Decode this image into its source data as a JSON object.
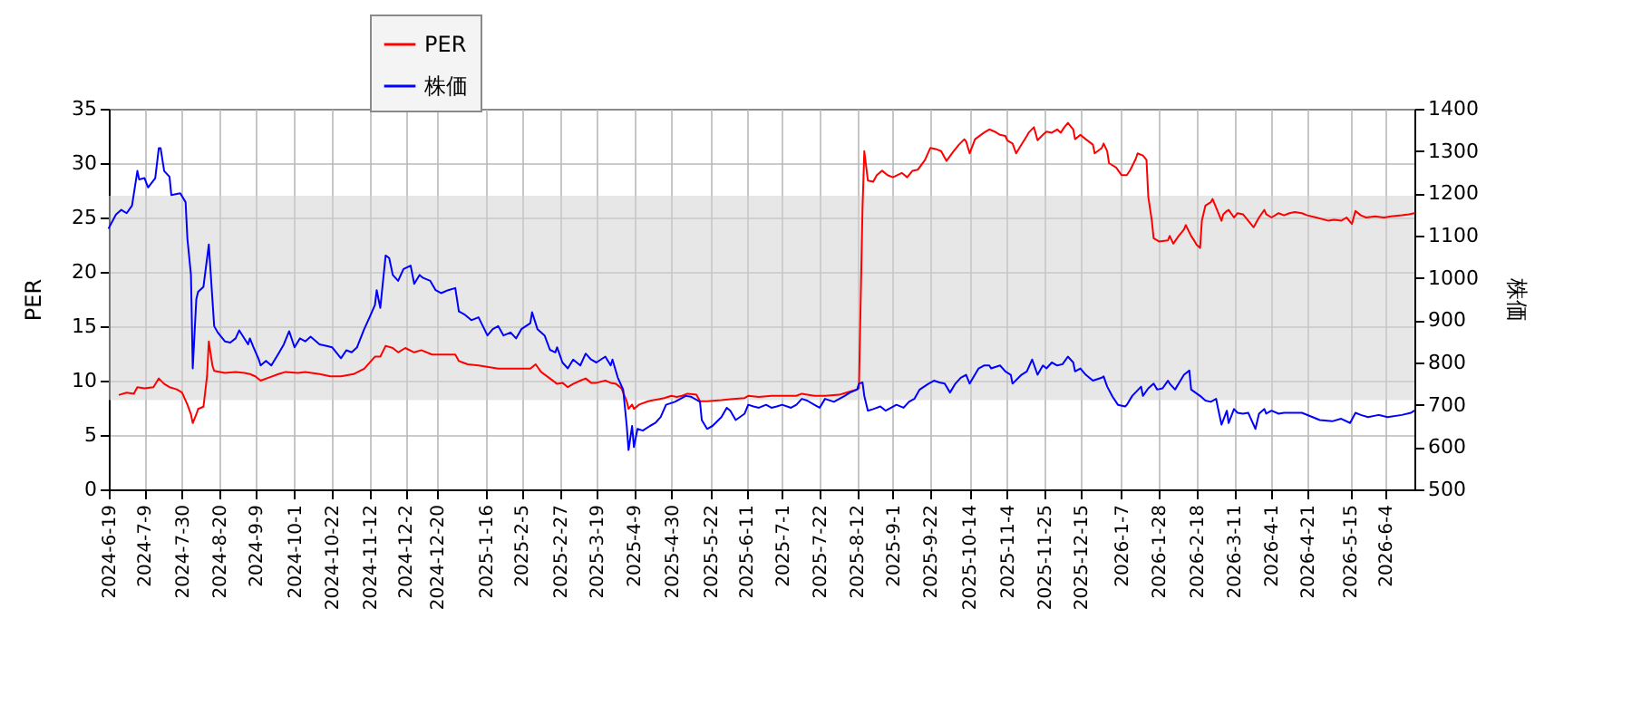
{
  "chart_data": {
    "type": "line",
    "ylabel": "PER",
    "y2label": "株価",
    "xlim": [
      "2024-06-19",
      "2026-06-20"
    ],
    "xticks": [
      {
        "value": "2024-06-19",
        "label": "2024-6-19"
      },
      {
        "value": "2024-07-09",
        "label": "2024-7-9"
      },
      {
        "value": "2024-07-30",
        "label": "2024-7-30"
      },
      {
        "value": "2024-08-20",
        "label": "2024-8-20"
      },
      {
        "value": "2024-09-09",
        "label": "2024-9-9"
      },
      {
        "value": "2024-10-01",
        "label": "2024-10-1"
      },
      {
        "value": "2024-10-22",
        "label": "2024-10-22"
      },
      {
        "value": "2024-11-12",
        "label": "2024-11-12"
      },
      {
        "value": "2024-12-02",
        "label": "2024-12-2"
      },
      {
        "value": "2024-12-20",
        "label": "2024-12-20"
      },
      {
        "value": "2025-01-16",
        "label": "2025-1-16"
      },
      {
        "value": "2025-02-05",
        "label": "2025-2-5"
      },
      {
        "value": "2025-02-27",
        "label": "2025-2-27"
      },
      {
        "value": "2025-03-19",
        "label": "2025-3-19"
      },
      {
        "value": "2025-04-09",
        "label": "2025-4-9"
      },
      {
        "value": "2025-04-30",
        "label": "2025-4-30"
      },
      {
        "value": "2025-05-22",
        "label": "2025-5-22"
      },
      {
        "value": "2025-06-11",
        "label": "2025-6-11"
      },
      {
        "value": "2025-07-01",
        "label": "2025-7-1"
      },
      {
        "value": "2025-07-22",
        "label": "2025-7-22"
      },
      {
        "value": "2025-08-12",
        "label": "2025-8-12"
      },
      {
        "value": "2025-09-01",
        "label": "2025-9-1"
      },
      {
        "value": "2025-09-22",
        "label": "2025-9-22"
      },
      {
        "value": "2025-10-14",
        "label": "2025-10-14"
      },
      {
        "value": "2025-11-04",
        "label": "2025-11-4"
      },
      {
        "value": "2025-11-25",
        "label": "2025-11-25"
      },
      {
        "value": "2025-12-15",
        "label": "2025-12-15"
      },
      {
        "value": "2026-01-07",
        "label": "2026-1-7"
      },
      {
        "value": "2026-01-28",
        "label": "2026-1-28"
      },
      {
        "value": "2026-02-18",
        "label": "2026-2-18"
      },
      {
        "value": "2026-03-11",
        "label": "2026-3-11"
      },
      {
        "value": "2026-04-01",
        "label": "2026-4-1"
      },
      {
        "value": "2026-04-21",
        "label": "2026-4-21"
      },
      {
        "value": "2026-05-15",
        "label": "2026-5-15"
      },
      {
        "value": "2026-06-04",
        "label": "2026-6-4"
      }
    ],
    "ylim": [
      0,
      35
    ],
    "yticks": [
      0,
      5,
      10,
      15,
      20,
      25,
      30,
      35
    ],
    "y2lim": [
      500,
      1400
    ],
    "y2ticks": [
      500,
      600,
      700,
      800,
      900,
      1000,
      1100,
      1200,
      1300,
      1400
    ],
    "grid": true,
    "legend": "top",
    "bands": [
      {
        "axis": "y",
        "from": 8.2,
        "to": 27,
        "color": "#d4d4d4"
      }
    ],
    "series": [
      {
        "name": "PER",
        "color": "#ff0000",
        "x": [
          "2024-06-25",
          "2024-06-29",
          "2024-07-03",
          "2024-07-05",
          "2024-07-09",
          "2024-07-14",
          "2024-07-17",
          "2024-07-20",
          "2024-07-23",
          "2024-07-27",
          "2024-07-30",
          "2024-08-02",
          "2024-08-04",
          "2024-08-05",
          "2024-08-07",
          "2024-08-08",
          "2024-08-11",
          "2024-08-13",
          "2024-08-14",
          "2024-08-16",
          "2024-08-17",
          "2024-08-23",
          "2024-08-29",
          "2024-09-03",
          "2024-09-06",
          "2024-09-09",
          "2024-09-12",
          "2024-09-17",
          "2024-09-22",
          "2024-09-26",
          "2024-10-03",
          "2024-10-07",
          "2024-10-15",
          "2024-10-21",
          "2024-10-27",
          "2024-11-03",
          "2024-11-09",
          "2024-11-15",
          "2024-11-18",
          "2024-11-21",
          "2024-11-25",
          "2024-11-28",
          "2024-12-02",
          "2024-12-07",
          "2024-12-11",
          "2024-12-17",
          "2024-12-30",
          "2025-01-01",
          "2025-01-06",
          "2025-01-12",
          "2025-01-23",
          "2025-01-30",
          "2025-02-05",
          "2025-02-10",
          "2025-02-13",
          "2025-02-16",
          "2025-02-21",
          "2025-02-25",
          "2025-02-28",
          "2025-03-03",
          "2025-03-06",
          "2025-03-10",
          "2025-03-13",
          "2025-03-16",
          "2025-03-19",
          "2025-03-24",
          "2025-03-27",
          "2025-03-30",
          "2025-04-02",
          "2025-04-05",
          "2025-04-06",
          "2025-04-08",
          "2025-04-09",
          "2025-04-12",
          "2025-04-17",
          "2025-04-20",
          "2025-04-23",
          "2025-04-26",
          "2025-04-30",
          "2025-05-03",
          "2025-05-06",
          "2025-05-09",
          "2025-05-14",
          "2025-05-16",
          "2025-05-20",
          "2025-05-28",
          "2025-06-02",
          "2025-06-10",
          "2025-06-12",
          "2025-06-18",
          "2025-06-25",
          "2025-07-01",
          "2025-07-09",
          "2025-07-12",
          "2025-07-19",
          "2025-07-25",
          "2025-08-02",
          "2025-08-06",
          "2025-08-12",
          "2025-08-13",
          "2025-08-15",
          "2025-08-16",
          "2025-08-18",
          "2025-08-21",
          "2025-08-23",
          "2025-08-26",
          "2025-08-29",
          "2025-09-01",
          "2025-09-06",
          "2025-09-09",
          "2025-09-12",
          "2025-09-15",
          "2025-09-19",
          "2025-09-22",
          "2025-09-25",
          "2025-09-28",
          "2025-10-01",
          "2025-10-05",
          "2025-10-08",
          "2025-10-11",
          "2025-10-12",
          "2025-10-14",
          "2025-10-17",
          "2025-10-22",
          "2025-10-25",
          "2025-10-28",
          "2025-10-31",
          "2025-11-03",
          "2025-11-04",
          "2025-11-07",
          "2025-11-09",
          "2025-11-12",
          "2025-11-15",
          "2025-11-16",
          "2025-11-19",
          "2025-11-21",
          "2025-11-24",
          "2025-11-26",
          "2025-11-29",
          "2025-12-02",
          "2025-12-04",
          "2025-12-06",
          "2025-12-08",
          "2025-12-11",
          "2025-12-12",
          "2025-12-15",
          "2025-12-18",
          "2025-12-22",
          "2025-12-23",
          "2025-12-27",
          "2025-12-28",
          "2025-12-30",
          "2025-12-31",
          "2026-01-04",
          "2026-01-07",
          "2026-01-10",
          "2026-01-12",
          "2026-01-15",
          "2026-01-16",
          "2026-01-19",
          "2026-01-21",
          "2026-01-22",
          "2026-01-24",
          "2026-01-25",
          "2026-01-28",
          "2026-02-02",
          "2026-02-03",
          "2026-02-05",
          "2026-02-08",
          "2026-02-11",
          "2026-02-12",
          "2026-02-15",
          "2026-02-17",
          "2026-02-18",
          "2026-02-20",
          "2026-02-21",
          "2026-02-23",
          "2026-02-26",
          "2026-02-27",
          "2026-03-01",
          "2026-03-04",
          "2026-03-05",
          "2026-03-07",
          "2026-03-08",
          "2026-03-11",
          "2026-03-13",
          "2026-03-16",
          "2026-03-19",
          "2026-03-22",
          "2026-03-25",
          "2026-03-28",
          "2026-03-29",
          "2026-04-01",
          "2026-04-05",
          "2026-04-08",
          "2026-04-11",
          "2026-04-14",
          "2026-04-18",
          "2026-04-21",
          "2026-04-26",
          "2026-05-03",
          "2026-05-06",
          "2026-05-10",
          "2026-05-13",
          "2026-05-16",
          "2026-05-18",
          "2026-05-21",
          "2026-05-24",
          "2026-05-29",
          "2026-06-03",
          "2026-06-07",
          "2026-06-13",
          "2026-06-17",
          "2026-06-20"
        ],
        "values": [
          8.7,
          8.9,
          8.8,
          9.4,
          9.3,
          9.4,
          10.2,
          9.7,
          9.4,
          9.2,
          8.9,
          7.8,
          6.9,
          6.1,
          6.9,
          7.4,
          7.6,
          10.4,
          13.6,
          11.4,
          10.9,
          10.7,
          10.8,
          10.7,
          10.6,
          10.4,
          10.0,
          10.3,
          10.6,
          10.8,
          10.7,
          10.8,
          10.6,
          10.4,
          10.4,
          10.6,
          11.1,
          12.2,
          12.2,
          13.2,
          13.0,
          12.6,
          13.0,
          12.6,
          12.8,
          12.4,
          12.4,
          11.8,
          11.5,
          11.4,
          11.1,
          11.1,
          11.1,
          11.1,
          11.5,
          10.8,
          10.2,
          9.7,
          9.8,
          9.4,
          9.7,
          10.0,
          10.2,
          9.8,
          9.8,
          10.0,
          9.8,
          9.7,
          9.3,
          8.1,
          7.4,
          7.8,
          7.4,
          7.8,
          8.1,
          8.2,
          8.3,
          8.4,
          8.6,
          8.5,
          8.6,
          8.8,
          8.7,
          8.1,
          8.1,
          8.2,
          8.3,
          8.4,
          8.6,
          8.5,
          8.6,
          8.6,
          8.6,
          8.8,
          8.6,
          8.6,
          8.7,
          8.9,
          9.2,
          9.3,
          25.8,
          31.1,
          28.4,
          28.3,
          28.9,
          29.3,
          28.9,
          28.7,
          29.1,
          28.7,
          29.3,
          29.4,
          30.3,
          31.4,
          31.3,
          31.1,
          30.2,
          31.1,
          31.7,
          32.2,
          32.0,
          30.9,
          32.2,
          32.8,
          33.1,
          32.9,
          32.6,
          32.5,
          32.1,
          31.8,
          30.9,
          31.7,
          32.5,
          32.8,
          33.3,
          32.1,
          32.6,
          32.9,
          32.8,
          33.1,
          32.8,
          33.3,
          33.7,
          33.1,
          32.2,
          32.6,
          32.2,
          31.7,
          30.9,
          31.4,
          31.8,
          31.1,
          30.0,
          29.6,
          28.9,
          28.9,
          29.4,
          30.4,
          30.9,
          30.7,
          30.3,
          26.9,
          24.7,
          23.1,
          22.8,
          22.9,
          23.3,
          22.6,
          23.3,
          23.9,
          24.3,
          23.3,
          22.8,
          22.5,
          22.2,
          24.7,
          26.1,
          26.4,
          26.7,
          25.9,
          24.7,
          25.3,
          25.6,
          25.7,
          25.0,
          25.4,
          25.3,
          24.7,
          24.1,
          25.0,
          25.7,
          25.3,
          25.0,
          25.4,
          25.2,
          25.4,
          25.5,
          25.4,
          25.2,
          25.0,
          24.7,
          24.8,
          24.7,
          25.0,
          24.4,
          25.6,
          25.2,
          25.0,
          25.1,
          25.0,
          25.1,
          25.2,
          25.3,
          25.4
        ]
      },
      {
        "name": "株価",
        "color": "#0000ff",
        "axis": "y2",
        "x": [
          "2024-06-19",
          "2024-06-23",
          "2024-06-26",
          "2024-06-29",
          "2024-07-02",
          "2024-07-05",
          "2024-07-06",
          "2024-07-09",
          "2024-07-11",
          "2024-07-15",
          "2024-07-17",
          "2024-07-18",
          "2024-07-20",
          "2024-07-23",
          "2024-07-24",
          "2024-07-29",
          "2024-08-01",
          "2024-08-02",
          "2024-08-04",
          "2024-08-05",
          "2024-08-07",
          "2024-08-08",
          "2024-08-11",
          "2024-08-14",
          "2024-08-16",
          "2024-08-17",
          "2024-08-19",
          "2024-08-23",
          "2024-08-26",
          "2024-08-29",
          "2024-08-31",
          "2024-09-05",
          "2024-09-06",
          "2024-09-08",
          "2024-09-11",
          "2024-09-12",
          "2024-09-15",
          "2024-09-18",
          "2024-09-22",
          "2024-09-25",
          "2024-09-28",
          "2024-10-01",
          "2024-10-04",
          "2024-10-07",
          "2024-10-10",
          "2024-10-15",
          "2024-10-19",
          "2024-10-22",
          "2024-10-27",
          "2024-10-30",
          "2024-11-02",
          "2024-11-05",
          "2024-11-09",
          "2024-11-12",
          "2024-11-15",
          "2024-11-16",
          "2024-11-18",
          "2024-11-21",
          "2024-11-23",
          "2024-11-25",
          "2024-11-28",
          "2024-12-01",
          "2024-12-05",
          "2024-12-07",
          "2024-12-10",
          "2024-12-12",
          "2024-12-16",
          "2024-12-19",
          "2024-12-22",
          "2024-12-26",
          "2024-12-30",
          "2025-01-01",
          "2025-01-04",
          "2025-01-08",
          "2025-01-12",
          "2025-01-17",
          "2025-01-20",
          "2025-01-23",
          "2025-01-26",
          "2025-01-30",
          "2025-02-02",
          "2025-02-05",
          "2025-02-10",
          "2025-02-11",
          "2025-02-14",
          "2025-02-18",
          "2025-02-21",
          "2025-02-24",
          "2025-02-25",
          "2025-02-28",
          "2025-03-03",
          "2025-03-06",
          "2025-03-10",
          "2025-03-13",
          "2025-03-16",
          "2025-03-19",
          "2025-03-24",
          "2025-03-27",
          "2025-03-28",
          "2025-03-31",
          "2025-04-03",
          "2025-04-05",
          "2025-04-06",
          "2025-04-08",
          "2025-04-09",
          "2025-04-11",
          "2025-04-14",
          "2025-04-18",
          "2025-04-21",
          "2025-04-24",
          "2025-04-27",
          "2025-05-02",
          "2025-05-05",
          "2025-05-08",
          "2025-05-11",
          "2025-05-16",
          "2025-05-17",
          "2025-05-20",
          "2025-05-23",
          "2025-05-28",
          "2025-05-31",
          "2025-06-02",
          "2025-06-05",
          "2025-06-10",
          "2025-06-12",
          "2025-06-15",
          "2025-06-18",
          "2025-06-22",
          "2025-06-25",
          "2025-06-28",
          "2025-07-01",
          "2025-07-06",
          "2025-07-09",
          "2025-07-12",
          "2025-07-15",
          "2025-07-19",
          "2025-07-22",
          "2025-07-25",
          "2025-07-30",
          "2025-08-02",
          "2025-08-05",
          "2025-08-08",
          "2025-08-12",
          "2025-08-13",
          "2025-08-15",
          "2025-08-16",
          "2025-08-18",
          "2025-08-21",
          "2025-08-25",
          "2025-08-28",
          "2025-08-31",
          "2025-09-03",
          "2025-09-07",
          "2025-09-10",
          "2025-09-13",
          "2025-09-16",
          "2025-09-21",
          "2025-09-24",
          "2025-09-27",
          "2025-09-30",
          "2025-10-03",
          "2025-10-06",
          "2025-10-09",
          "2025-10-12",
          "2025-10-14",
          "2025-10-19",
          "2025-10-22",
          "2025-10-25",
          "2025-10-26",
          "2025-10-31",
          "2025-11-03",
          "2025-11-06",
          "2025-11-07",
          "2025-11-12",
          "2025-11-15",
          "2025-11-18",
          "2025-11-21",
          "2025-11-24",
          "2025-11-26",
          "2025-11-29",
          "2025-12-02",
          "2025-12-05",
          "2025-12-08",
          "2025-12-11",
          "2025-12-12",
          "2025-12-15",
          "2025-12-18",
          "2025-12-22",
          "2025-12-27",
          "2025-12-28",
          "2025-12-30",
          "2026-01-02",
          "2026-01-05",
          "2026-01-09",
          "2026-01-10",
          "2026-01-13",
          "2026-01-18",
          "2026-01-19",
          "2026-01-22",
          "2026-01-25",
          "2026-01-27",
          "2026-01-30",
          "2026-02-02",
          "2026-02-03",
          "2026-02-06",
          "2026-02-09",
          "2026-02-11",
          "2026-02-14",
          "2026-02-15",
          "2026-02-20",
          "2026-02-23",
          "2026-02-26",
          "2026-03-01",
          "2026-03-02",
          "2026-03-04",
          "2026-03-07",
          "2026-03-08",
          "2026-03-11",
          "2026-03-13",
          "2026-03-16",
          "2026-03-19",
          "2026-03-20",
          "2026-03-23",
          "2026-03-25",
          "2026-03-28",
          "2026-03-29",
          "2026-04-01",
          "2026-04-05",
          "2026-04-08",
          "2026-04-11",
          "2026-04-18",
          "2026-04-24",
          "2026-04-28",
          "2026-05-05",
          "2026-05-10",
          "2026-05-15",
          "2026-05-18",
          "2026-05-21",
          "2026-05-25",
          "2026-05-31",
          "2026-06-05",
          "2026-06-13",
          "2026-06-18",
          "2026-06-20"
        ],
        "values": [
          1118,
          1150,
          1161,
          1153,
          1171,
          1253,
          1233,
          1236,
          1214,
          1236,
          1307,
          1307,
          1253,
          1239,
          1196,
          1200,
          1179,
          1093,
          1007,
          786,
          950,
          967,
          979,
          1079,
          950,
          886,
          871,
          850,
          847,
          857,
          876,
          843,
          857,
          836,
          807,
          793,
          804,
          793,
          821,
          843,
          874,
          836,
          857,
          850,
          861,
          843,
          839,
          836,
          810,
          829,
          824,
          836,
          879,
          907,
          936,
          971,
          929,
          1053,
          1047,
          1007,
          993,
          1021,
          1029,
          986,
          1007,
          1000,
          993,
          971,
          964,
          971,
          976,
          921,
          914,
          900,
          907,
          864,
          879,
          886,
          864,
          871,
          857,
          879,
          893,
          919,
          879,
          864,
          830,
          824,
          836,
          800,
          786,
          807,
          793,
          821,
          807,
          800,
          814,
          793,
          807,
          764,
          736,
          650,
          593,
          650,
          600,
          643,
          639,
          650,
          657,
          671,
          700,
          707,
          714,
          721,
          719,
          707,
          664,
          643,
          650,
          671,
          693,
          686,
          664,
          679,
          700,
          696,
          693,
          700,
          693,
          696,
          700,
          693,
          700,
          714,
          710,
          700,
          693,
          714,
          707,
          714,
          721,
          729,
          736,
          750,
          753,
          721,
          686,
          690,
          696,
          686,
          693,
          700,
          693,
          707,
          714,
          736,
          750,
          757,
          753,
          750,
          729,
          750,
          764,
          771,
          750,
          786,
          793,
          793,
          786,
          793,
          779,
          771,
          750,
          771,
          779,
          807,
          771,
          793,
          786,
          800,
          793,
          796,
          814,
          800,
          779,
          786,
          771,
          757,
          764,
          767,
          743,
          719,
          700,
          696,
          700,
          721,
          743,
          721,
          739,
          750,
          736,
          739,
          757,
          750,
          736,
          757,
          771,
          781,
          736,
          721,
          710,
          707,
          714,
          693,
          653,
          686,
          657,
          690,
          681,
          679,
          681,
          671,
          643,
          679,
          690,
          679,
          686,
          679,
          681,
          681,
          681,
          671,
          664,
          661,
          667,
          657,
          681,
          676,
          671,
          676,
          671,
          676,
          681,
          686
        ]
      }
    ]
  }
}
